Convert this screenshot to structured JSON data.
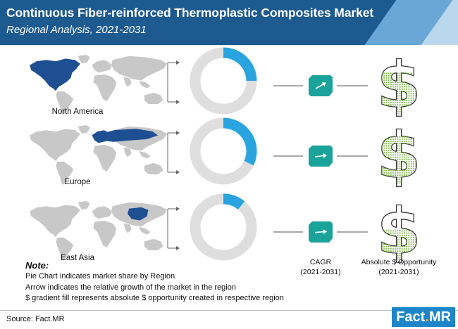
{
  "header": {
    "title": "Continuous Fiber-reinforced Thermoplastic Composites Market",
    "subtitle": "Regional Analysis, 2021-2031"
  },
  "columns": {
    "cagr_label": "CAGR",
    "cagr_period": "(2021-2031)",
    "opportunity_label": "Absolute $ Opportunity",
    "opportunity_period": "(2021-2031)"
  },
  "chart_data": {
    "type": "pie",
    "categories": [
      "North America",
      "Europe",
      "East Asia"
    ],
    "values": [
      25,
      32,
      11
    ],
    "dollar_fill": [
      0.75,
      0.85,
      0.55
    ]
  },
  "notes": {
    "title": "Note:",
    "lines": [
      "Pie Chart indicates market share by Region",
      "Arrow indicates the relative growth of the market in the region",
      "$ gradient fill represents absolute $ opportunity created in respective region"
    ]
  },
  "footer": {
    "source": "Source: Fact.MR",
    "logo_text": "Fact",
    "logo_dot": ".",
    "logo_suffix": "MR"
  },
  "colors": {
    "header": "#1d5a90",
    "highlight": "#1f4f93",
    "map_base": "#c8c8c8",
    "donut_base": "#dedede",
    "donut_share": "#2aa4df",
    "cagr_box": "#1aa39a",
    "dollar_fill": "#8bc34a"
  }
}
